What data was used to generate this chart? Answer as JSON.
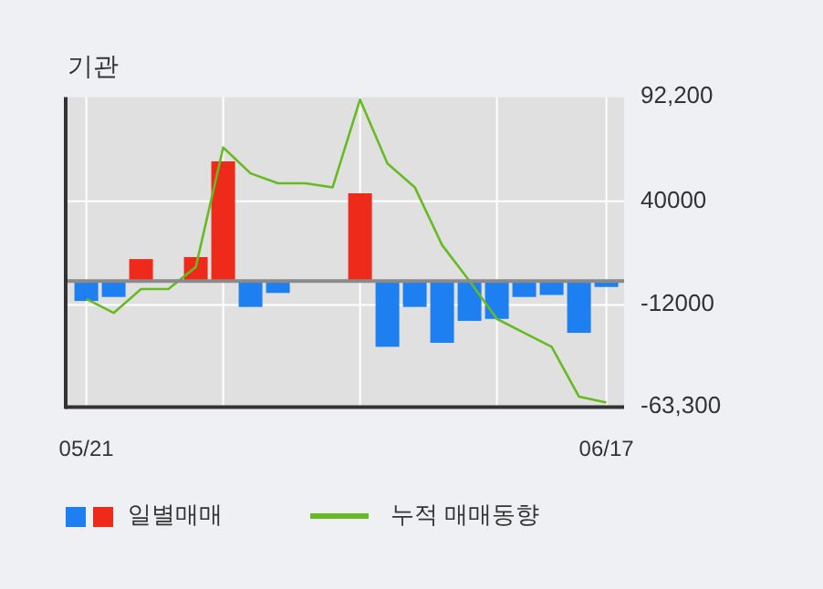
{
  "chart_data": {
    "type": "bar",
    "title": "기관",
    "categories": [
      "05/21",
      null,
      null,
      null,
      null,
      null,
      null,
      null,
      null,
      null,
      null,
      null,
      null,
      null,
      null,
      null,
      null,
      null,
      null,
      "06/17"
    ],
    "ylim": [
      -63300,
      92200
    ],
    "yticks": [
      {
        "value": 92200,
        "label": "92,200"
      },
      40000,
      -12000,
      {
        "value": -63300,
        "label": "-63,300"
      }
    ],
    "grid": true,
    "legend": "bottom",
    "ref_lines": [
      {
        "axis": "y",
        "value": 0,
        "color": "#8a8a8a"
      }
    ],
    "series": [
      {
        "name": "일별매매",
        "colors": [
          "#1e7ff0",
          "#1e7ff0",
          "#ee2a1a",
          "#ee2a1a",
          "#ee2a1a",
          "#ee2a1a",
          "#1e7ff0",
          "#1e7ff0",
          "#1e7ff0",
          "#1e7ff0",
          "#ee2a1a",
          "#1e7ff0",
          "#1e7ff0",
          "#1e7ff0",
          "#1e7ff0",
          "#1e7ff0",
          "#1e7ff0",
          "#1e7ff0",
          "#1e7ff0",
          "#1e7ff0"
        ],
        "values": [
          -10000,
          -8000,
          11000,
          0,
          12000,
          60000,
          -13000,
          -6000,
          0,
          0,
          44000,
          -33000,
          -13000,
          -31000,
          -20000,
          -19000,
          -8000,
          -7000,
          -26000,
          -3000
        ]
      },
      {
        "name": "누적 매매동향",
        "type": "line",
        "color": "#66bb22",
        "values": [
          -9000,
          -16000,
          -4000,
          -4000,
          7000,
          67000,
          54000,
          49000,
          49000,
          47000,
          91000,
          59000,
          47000,
          18000,
          0,
          -19000,
          -26000,
          -33000,
          -58000,
          -61000
        ]
      }
    ]
  }
}
